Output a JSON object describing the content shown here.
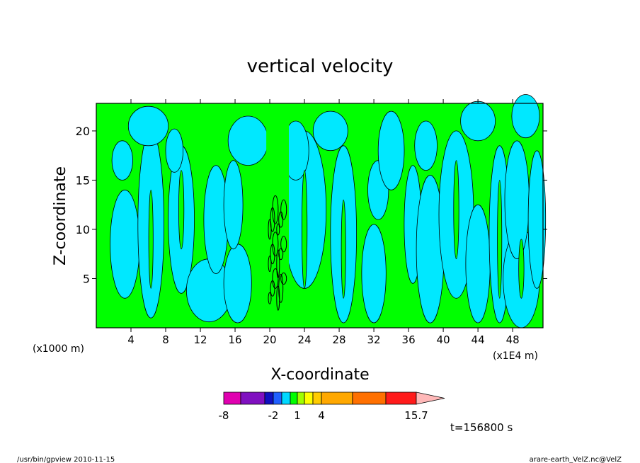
{
  "chart_data": {
    "type": "heatmap",
    "title": "vertical velocity",
    "xlabel": "X-coordinate",
    "ylabel": "Z-coordinate",
    "x_scale_note_left": "(x1000 m)",
    "x_scale_note_right": "(x1E4 m)",
    "xlim": [
      0,
      51.5
    ],
    "ylim": [
      0,
      22.8
    ],
    "xticks": [
      4,
      8,
      12,
      16,
      20,
      24,
      28,
      32,
      36,
      40,
      44,
      48
    ],
    "yticks": [
      5,
      10,
      15,
      20
    ],
    "time_label": "t=156800 s",
    "dominant_colors": {
      "positive_small": "#00ff00",
      "negative_small": "#00e8ff",
      "contour": "#000000"
    },
    "colorbar": {
      "swatches": [
        "#e000b0",
        "#8010c0",
        "#1010c0",
        "#2060ff",
        "#00d8ff",
        "#00ff00",
        "#a0ff00",
        "#ffff00",
        "#ffcc00",
        "#ffa800",
        "#ff7000",
        "#ff1a1a",
        "#ff7878"
      ],
      "arrow_color": "#ffb8b8",
      "tick_labels": [
        "-8",
        "-2",
        "1",
        "4",
        "15.7"
      ]
    }
  },
  "footer": {
    "left": "/usr/bin/gpview   2010-11-15",
    "right": "arare-earth_VelZ.nc@VelZ"
  }
}
